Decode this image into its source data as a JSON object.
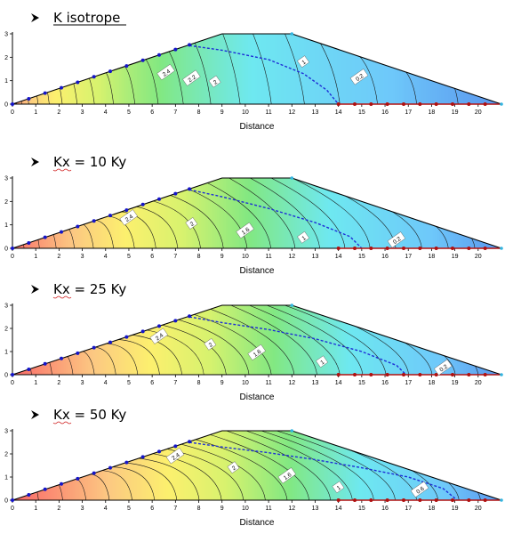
{
  "chart_data": [
    {
      "type": "heatmap",
      "title": "K isotrope",
      "xlabel": "Distance",
      "ylabel": "",
      "xlim": [
        0,
        21
      ],
      "ylim": [
        0,
        3
      ],
      "x_ticks": [
        0,
        1,
        2,
        3,
        4,
        5,
        6,
        7,
        8,
        9,
        10,
        11,
        12,
        13,
        14,
        15,
        16,
        17,
        18,
        19,
        20
      ],
      "y_ticks": [
        0,
        1,
        2,
        3
      ],
      "dam_profile": {
        "x": [
          0,
          9,
          12,
          21
        ],
        "y": [
          0,
          3,
          3,
          0
        ]
      },
      "head_range": [
        0,
        2.5
      ],
      "anisotropy": 1,
      "contour_labels": [
        {
          "text": "2.4",
          "x": 6.6,
          "y": 1.35
        },
        {
          "text": "2.2",
          "x": 7.7,
          "y": 1.1
        },
        {
          "text": "2",
          "x": 8.7,
          "y": 0.95
        },
        {
          "text": "1",
          "x": 12.5,
          "y": 1.8
        },
        {
          "text": "0.2",
          "x": 14.9,
          "y": 1.15
        }
      ],
      "phreatic_line": {
        "x": [
          7.6,
          9,
          11,
          12.5,
          13.5,
          14
        ],
        "y": [
          2.5,
          2.3,
          1.9,
          1.3,
          0.6,
          0
        ]
      },
      "upstream_nodes": {
        "x": [
          0,
          0.7,
          1.4,
          2.1,
          2.8,
          3.5,
          4.2,
          4.9,
          5.6,
          6.3,
          7.0,
          7.6
        ],
        "y": [
          0,
          0.23,
          0.47,
          0.7,
          0.93,
          1.17,
          1.4,
          1.63,
          1.87,
          2.1,
          2.33,
          2.53
        ]
      },
      "drain_nodes": {
        "x": [
          14,
          14.7,
          15.4,
          16.1,
          16.8,
          17.5,
          18.2,
          18.9,
          19.6,
          20.3
        ],
        "y": [
          0,
          0,
          0,
          0,
          0,
          0,
          0,
          0,
          0,
          0
        ]
      }
    },
    {
      "type": "heatmap",
      "title": "Kx = 10 Ky",
      "xlabel": "Distance",
      "ylabel": "",
      "xlim": [
        0,
        21
      ],
      "ylim": [
        0,
        3
      ],
      "x_ticks": [
        0,
        1,
        2,
        3,
        4,
        5,
        6,
        7,
        8,
        9,
        10,
        11,
        12,
        13,
        14,
        15,
        16,
        17,
        18,
        19,
        20
      ],
      "y_ticks": [
        0,
        1,
        2,
        3
      ],
      "dam_profile": {
        "x": [
          0,
          9,
          12,
          21
        ],
        "y": [
          0,
          3,
          3,
          0
        ]
      },
      "head_range": [
        0,
        2.5
      ],
      "anisotropy": 10,
      "contour_labels": [
        {
          "text": "2.4",
          "x": 5.0,
          "y": 1.3
        },
        {
          "text": "2",
          "x": 7.7,
          "y": 1.05
        },
        {
          "text": "1.6",
          "x": 10.0,
          "y": 0.75
        },
        {
          "text": "1",
          "x": 12.5,
          "y": 0.45
        },
        {
          "text": "0.2",
          "x": 16.5,
          "y": 0.35
        }
      ],
      "phreatic_line": {
        "x": [
          7.6,
          9,
          11,
          13,
          14.5,
          15
        ],
        "y": [
          2.5,
          2.2,
          1.7,
          1.1,
          0.5,
          0
        ]
      },
      "upstream_nodes": {
        "x": [
          0,
          0.7,
          1.4,
          2.1,
          2.8,
          3.5,
          4.2,
          4.9,
          5.6,
          6.3,
          7.0,
          7.6
        ],
        "y": [
          0,
          0.23,
          0.47,
          0.7,
          0.93,
          1.17,
          1.4,
          1.63,
          1.87,
          2.1,
          2.33,
          2.53
        ]
      },
      "drain_nodes": {
        "x": [
          14,
          14.7,
          15.4,
          16.1,
          16.8,
          17.5,
          18.2,
          18.9,
          19.6,
          20.3
        ],
        "y": [
          0,
          0,
          0,
          0,
          0,
          0,
          0,
          0,
          0,
          0
        ]
      }
    },
    {
      "type": "heatmap",
      "title": "Kx = 25 Ky",
      "xlabel": "Distance",
      "ylabel": "",
      "xlim": [
        0,
        21
      ],
      "ylim": [
        0,
        3
      ],
      "x_ticks": [
        0,
        1,
        2,
        3,
        4,
        5,
        6,
        7,
        8,
        9,
        10,
        11,
        12,
        13,
        14,
        15,
        16,
        17,
        18,
        19,
        20
      ],
      "y_ticks": [
        0,
        1,
        2,
        3
      ],
      "dam_profile": {
        "x": [
          0,
          9,
          12,
          21
        ],
        "y": [
          0,
          3,
          3,
          0
        ]
      },
      "head_range": [
        0,
        2.5
      ],
      "anisotropy": 25,
      "contour_labels": [
        {
          "text": "2.4",
          "x": 6.3,
          "y": 1.65
        },
        {
          "text": "2",
          "x": 8.5,
          "y": 1.3
        },
        {
          "text": "1.6",
          "x": 10.5,
          "y": 0.95
        },
        {
          "text": "1",
          "x": 13.3,
          "y": 0.55
        },
        {
          "text": "0.2",
          "x": 18.5,
          "y": 0.3
        }
      ],
      "phreatic_line": {
        "x": [
          7.6,
          9,
          11,
          13,
          15,
          16.5,
          16.9
        ],
        "y": [
          2.5,
          2.25,
          1.95,
          1.55,
          1.0,
          0.4,
          0
        ]
      },
      "upstream_nodes": {
        "x": [
          0,
          0.7,
          1.4,
          2.1,
          2.8,
          3.5,
          4.2,
          4.9,
          5.6,
          6.3,
          7.0,
          7.6
        ],
        "y": [
          0,
          0.23,
          0.47,
          0.7,
          0.93,
          1.17,
          1.4,
          1.63,
          1.87,
          2.1,
          2.33,
          2.53
        ]
      },
      "drain_nodes": {
        "x": [
          14,
          14.7,
          15.4,
          16.1,
          16.8,
          17.5,
          18.2,
          18.9,
          19.6,
          20.3
        ],
        "y": [
          0,
          0,
          0,
          0,
          0,
          0,
          0,
          0,
          0,
          0
        ]
      }
    },
    {
      "type": "heatmap",
      "title": "Kx = 50 Ky",
      "xlabel": "Distance",
      "ylabel": "",
      "xlim": [
        0,
        21
      ],
      "ylim": [
        0,
        3
      ],
      "x_ticks": [
        0,
        1,
        2,
        3,
        4,
        5,
        6,
        7,
        8,
        9,
        10,
        11,
        12,
        13,
        14,
        15,
        16,
        17,
        18,
        19,
        20
      ],
      "y_ticks": [
        0,
        1,
        2,
        3
      ],
      "dam_profile": {
        "x": [
          0,
          9,
          12,
          21
        ],
        "y": [
          0,
          3,
          3,
          0
        ]
      },
      "head_range": [
        0,
        2.5
      ],
      "anisotropy": 50,
      "contour_labels": [
        {
          "text": "2.4",
          "x": 7.0,
          "y": 1.9
        },
        {
          "text": "2",
          "x": 9.5,
          "y": 1.4
        },
        {
          "text": "1.6",
          "x": 11.8,
          "y": 1.05
        },
        {
          "text": "1",
          "x": 14.0,
          "y": 0.55
        },
        {
          "text": "0.6",
          "x": 17.5,
          "y": 0.45
        }
      ],
      "phreatic_line": {
        "x": [
          7.6,
          9,
          11,
          13,
          15,
          17,
          18.5,
          19.1
        ],
        "y": [
          2.5,
          2.3,
          2.05,
          1.75,
          1.4,
          1.0,
          0.5,
          0
        ]
      },
      "upstream_nodes": {
        "x": [
          0,
          0.7,
          1.4,
          2.1,
          2.8,
          3.5,
          4.2,
          4.9,
          5.6,
          6.3,
          7.0,
          7.6
        ],
        "y": [
          0,
          0.23,
          0.47,
          0.7,
          0.93,
          1.17,
          1.4,
          1.63,
          1.87,
          2.1,
          2.33,
          2.53
        ]
      },
      "drain_nodes": {
        "x": [
          14,
          14.7,
          15.4,
          16.1,
          16.8,
          17.5,
          18.2,
          18.9,
          19.6,
          20.3
        ],
        "y": [
          0,
          0,
          0,
          0,
          0,
          0,
          0,
          0,
          0,
          0
        ]
      }
    }
  ],
  "colors": {
    "bullet": "#000000",
    "phreatic": "#1e2fd6",
    "upstream_node": "#1515c8",
    "drain_node": "#b01010",
    "downstream_node": "#33b5e0",
    "outline": "#000000"
  }
}
